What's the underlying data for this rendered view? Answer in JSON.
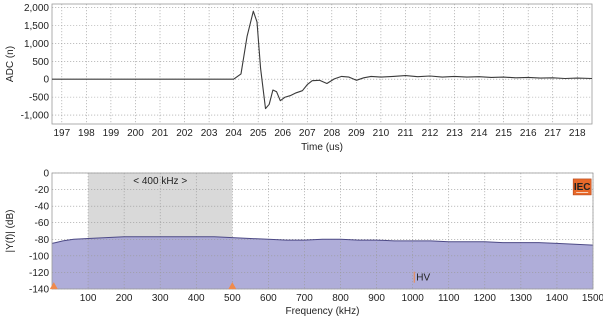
{
  "chart_data": [
    {
      "type": "line",
      "xlabel": "Time (us)",
      "ylabel": "ADC (n)",
      "xlim": [
        196.6,
        218.6
      ],
      "ylim": [
        -1250,
        2100
      ],
      "xticks": [
        197,
        198,
        199,
        200,
        201,
        202,
        203,
        204,
        205,
        206,
        207,
        208,
        209,
        210,
        211,
        212,
        213,
        214,
        215,
        216,
        217,
        218
      ],
      "yticks": [
        -1000,
        -500,
        0,
        500,
        1000,
        1500,
        2000
      ],
      "ytick_labels": [
        "-1,000",
        "-500",
        "0",
        "500",
        "1,000",
        "1,500",
        "2,000"
      ],
      "grid": true,
      "line_color": "#3a3a3a",
      "series": [
        {
          "x": [
            196.6,
            204.0,
            204.3,
            204.55,
            204.8,
            204.95,
            205.1,
            205.3,
            205.45,
            205.6,
            205.75,
            205.9,
            206.1,
            206.3,
            206.55,
            206.8,
            207.0,
            207.2,
            207.5,
            207.8,
            208.1,
            208.4,
            208.7,
            209.0,
            209.3,
            209.6,
            210.0,
            210.5,
            211.0,
            211.5,
            212.0,
            212.5,
            213.0,
            213.5,
            214.0,
            214.5,
            215.0,
            215.5,
            216.0,
            216.5,
            217.0,
            217.5,
            218.0,
            218.6
          ],
          "y": [
            0,
            0,
            150,
            1200,
            1900,
            1600,
            300,
            -820,
            -700,
            -300,
            -350,
            -600,
            -500,
            -460,
            -380,
            -320,
            -150,
            -40,
            -30,
            -120,
            10,
            80,
            60,
            -30,
            40,
            80,
            60,
            80,
            100,
            70,
            90,
            60,
            80,
            60,
            70,
            50,
            60,
            40,
            50,
            30,
            40,
            20,
            30,
            20
          ]
        }
      ]
    },
    {
      "type": "area",
      "xlabel": "Frequency (kHz)",
      "ylabel": "|Y(f)| (dB)",
      "xlim": [
        0,
        1500
      ],
      "ylim": [
        -140,
        0
      ],
      "xticks": [
        100,
        200,
        300,
        400,
        500,
        600,
        700,
        800,
        900,
        1000,
        1100,
        1200,
        1300,
        1400,
        1500
      ],
      "yticks": [
        0,
        -20,
        -40,
        -60,
        -80,
        -100,
        -120,
        -140
      ],
      "grid": true,
      "fill_color": "#a8a6d6",
      "line_color": "#4d4a86",
      "highlight": {
        "range": [
          100,
          500
        ],
        "label": "< 400 kHz >",
        "color": "#d9d9d9",
        "label_color": "#b99ad9"
      },
      "annotations": [
        {
          "text": "IEC",
          "x": 1470,
          "y": -18,
          "color": "#e8692a"
        },
        {
          "text": "HV",
          "x": 1010,
          "y": -130,
          "color": "#f08a4b"
        }
      ],
      "markers": [
        {
          "x": 5,
          "y": -139,
          "color": "#f08a4b"
        },
        {
          "x": 500,
          "y": -139,
          "color": "#f08a4b"
        }
      ],
      "series": [
        {
          "x": [
            0,
            10,
            30,
            60,
            100,
            150,
            200,
            250,
            300,
            350,
            400,
            450,
            500,
            550,
            600,
            650,
            700,
            750,
            800,
            850,
            900,
            950,
            1000,
            1050,
            1100,
            1150,
            1200,
            1250,
            1300,
            1350,
            1400,
            1450,
            1500
          ],
          "y": [
            -85,
            -84,
            -82,
            -80,
            -79,
            -78,
            -77,
            -77,
            -77,
            -77,
            -77,
            -77,
            -78,
            -79,
            -80,
            -81,
            -81,
            -80,
            -80,
            -81,
            -81,
            -82,
            -82,
            -82,
            -83,
            -83,
            -83,
            -84,
            -84,
            -84,
            -85,
            -86,
            -87
          ]
        }
      ]
    }
  ]
}
